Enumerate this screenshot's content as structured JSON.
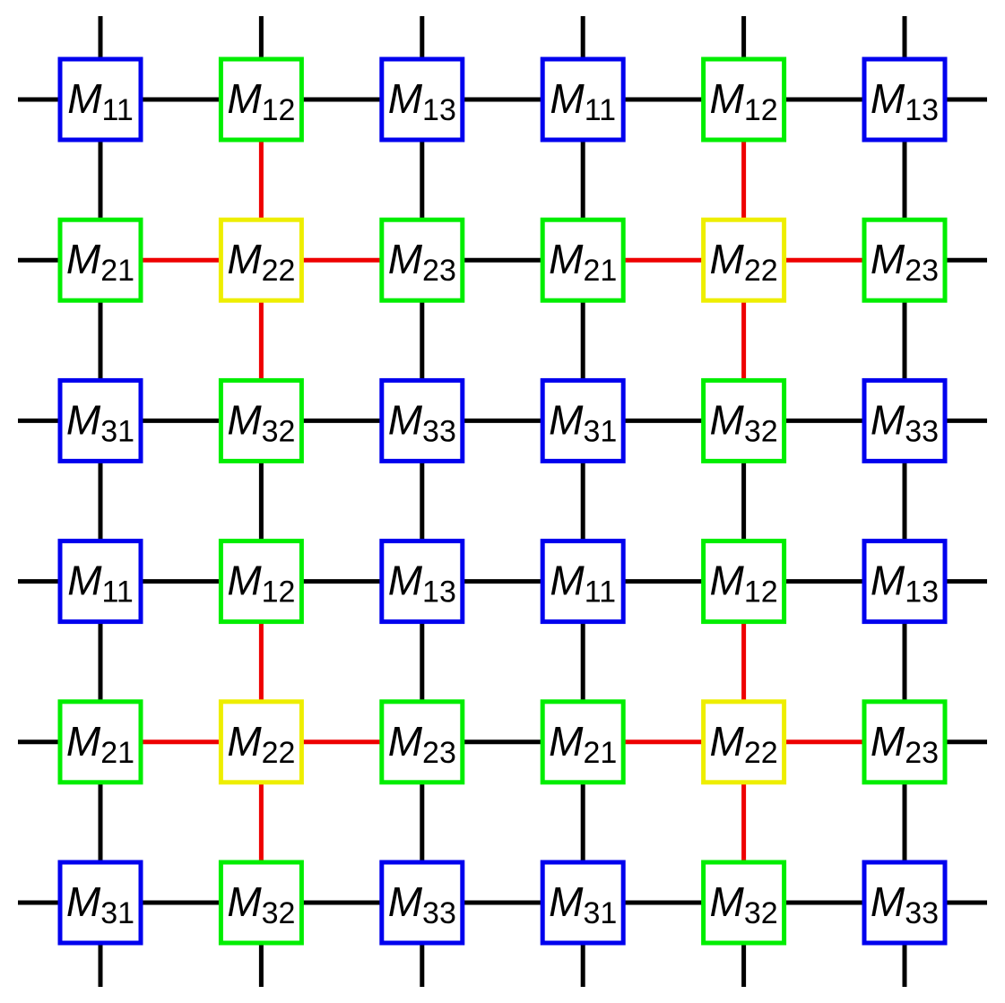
{
  "diagram": {
    "node_symbol": "M",
    "grid": [
      [
        "11",
        "12",
        "13",
        "11",
        "12",
        "13"
      ],
      [
        "21",
        "22",
        "23",
        "21",
        "22",
        "23"
      ],
      [
        "31",
        "32",
        "33",
        "31",
        "32",
        "33"
      ],
      [
        "11",
        "12",
        "13",
        "11",
        "12",
        "13"
      ],
      [
        "21",
        "22",
        "23",
        "21",
        "22",
        "23"
      ],
      [
        "31",
        "32",
        "33",
        "31",
        "32",
        "33"
      ]
    ],
    "node_colors": {
      "11": "#0000ee",
      "13": "#0000ee",
      "31": "#0000ee",
      "33": "#0000ee",
      "12": "#00ee00",
      "21": "#00ee00",
      "23": "#00ee00",
      "32": "#00ee00",
      "22": "#eeee00"
    },
    "edge_color_default": "#000000",
    "edge_color_highlight": "#ee0000",
    "highlight_center": "22"
  }
}
